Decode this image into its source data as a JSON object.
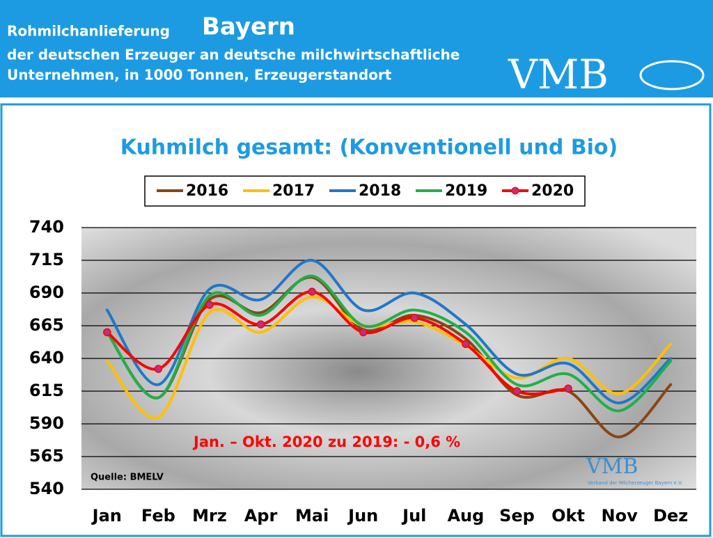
{
  "header": {
    "title": "Rohmilchanlieferung",
    "region": "Bayern",
    "line2": "der deutschen Erzeuger an deutsche milchwirtschaftliche",
    "line3": "Unternehmen, in 1000 Tonnen, Erzeugerstandort",
    "logo": "VMB"
  },
  "chart_data": {
    "type": "line",
    "title": "Kuhmilch gesamt: (Konventionell und Bio)",
    "categories": [
      "Jan",
      "Feb",
      "Mrz",
      "Apr",
      "Mai",
      "Jun",
      "Jul",
      "Aug",
      "Sep",
      "Okt",
      "Nov",
      "Dez"
    ],
    "series": [
      {
        "name": "2016",
        "color": "#8b4513",
        "values": [
          660,
          610,
          685,
          675,
          702,
          662,
          673,
          655,
          612,
          615,
          580,
          620
        ]
      },
      {
        "name": "2017",
        "color": "#ffc000",
        "values": [
          638,
          595,
          675,
          660,
          687,
          665,
          668,
          650,
          625,
          640,
          613,
          651
        ]
      },
      {
        "name": "2018",
        "color": "#1f78c8",
        "values": [
          677,
          620,
          693,
          685,
          715,
          677,
          690,
          666,
          628,
          636,
          606,
          640
        ]
      },
      {
        "name": "2019",
        "color": "#1fb04a",
        "values": [
          660,
          610,
          688,
          673,
          703,
          665,
          677,
          660,
          620,
          628,
          600,
          638
        ]
      },
      {
        "name": "2020",
        "color": "#ff0000",
        "values": [
          660,
          632,
          681,
          666,
          691,
          660,
          671,
          651,
          615,
          617,
          null,
          null
        ],
        "markers": true
      }
    ],
    "ylim": [
      540,
      740
    ],
    "yticks": [
      540,
      565,
      590,
      615,
      640,
      665,
      690,
      715,
      740
    ],
    "grid": true,
    "annotation": "Jan. – Okt. 2020 zu 2019: - 0,6 %",
    "source": "Quelle: BMELV",
    "watermark": "VMB",
    "watermark_sub": "Verband der Milcherzeuger Bayern e.V."
  }
}
